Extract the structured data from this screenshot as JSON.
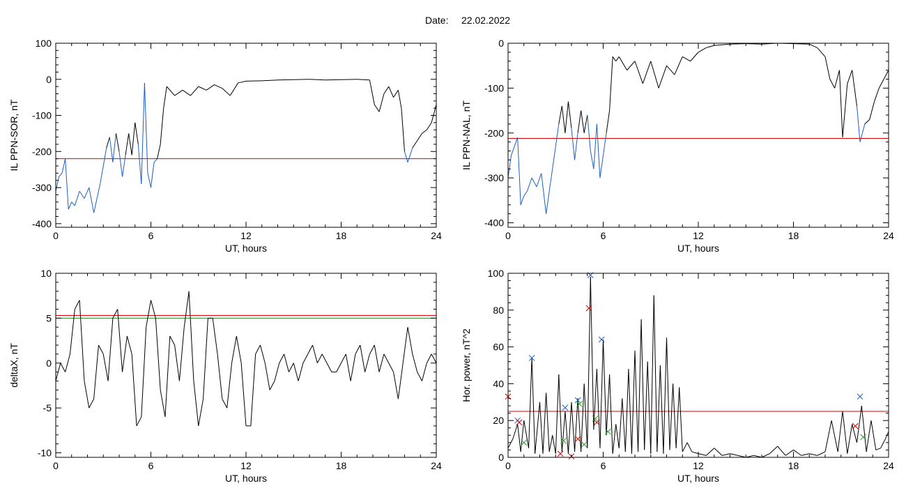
{
  "header": {
    "date_label": "Date:",
    "date_value": "22.02.2022"
  },
  "colors": {
    "trace": "#000000",
    "highlight": "#1c5ec4",
    "threshold_red": "#e00000",
    "threshold_green": "#2a8a2a",
    "marker_blue": "#1c5ec4",
    "marker_red": "#e00000",
    "marker_green": "#2aa02a"
  },
  "chart_data": [
    {
      "type": "line",
      "title": "",
      "xlabel": "UT, hours",
      "ylabel": "IL PPN-SOR, nT",
      "xlim": [
        0,
        24
      ],
      "ylim": [
        -410,
        100
      ],
      "xticks": [
        0,
        6,
        12,
        18,
        24
      ],
      "yticks": [
        -400,
        -300,
        -200,
        -100,
        0,
        100
      ],
      "grid": false,
      "threshold": -220,
      "highlight_color": "#1c5ec4",
      "x": [
        0,
        0.2,
        0.4,
        0.6,
        0.8,
        1.0,
        1.2,
        1.5,
        1.8,
        2.1,
        2.4,
        2.6,
        2.8,
        3.0,
        3.2,
        3.4,
        3.6,
        3.8,
        4.0,
        4.2,
        4.4,
        4.6,
        4.8,
        5.0,
        5.2,
        5.4,
        5.6,
        5.8,
        6.0,
        6.2,
        6.4,
        6.6,
        6.8,
        7.0,
        7.5,
        8.0,
        8.5,
        9.0,
        9.5,
        10.0,
        10.5,
        11.0,
        11.5,
        12.0,
        13.0,
        14.0,
        15.0,
        16.0,
        17.0,
        18.0,
        19.0,
        19.8,
        20.1,
        20.4,
        20.7,
        21.0,
        21.3,
        21.6,
        21.8,
        22.0,
        22.2,
        22.5,
        22.8,
        23.1,
        23.4,
        23.7,
        24.0
      ],
      "values": [
        -310,
        -270,
        -260,
        -220,
        -360,
        -340,
        -350,
        -310,
        -330,
        -300,
        -370,
        -330,
        -290,
        -240,
        -190,
        -160,
        -230,
        -150,
        -200,
        -270,
        -210,
        -150,
        -210,
        -120,
        -180,
        -290,
        -10,
        -260,
        -300,
        -230,
        -220,
        -180,
        -80,
        -20,
        -45,
        -30,
        -45,
        -20,
        -30,
        -15,
        -25,
        -45,
        -10,
        -5,
        -4,
        -2,
        -1,
        0,
        -2,
        -1,
        0,
        -2,
        -70,
        -90,
        -40,
        -20,
        -50,
        -30,
        -80,
        -200,
        -230,
        -190,
        -170,
        -150,
        -140,
        -120,
        -70
      ]
    },
    {
      "type": "line",
      "title": "",
      "xlabel": "UT, hours",
      "ylabel": "IL PPN-NAL, nT",
      "xlim": [
        0,
        24
      ],
      "ylim": [
        -410,
        0
      ],
      "xticks": [
        0,
        6,
        12,
        18,
        24
      ],
      "yticks": [
        -400,
        -300,
        -200,
        -100,
        0
      ],
      "grid": false,
      "threshold": -212,
      "highlight_color": "#1c5ec4",
      "x": [
        0,
        0.2,
        0.4,
        0.6,
        0.8,
        1.0,
        1.2,
        1.5,
        1.8,
        2.1,
        2.4,
        2.6,
        2.8,
        3.0,
        3.2,
        3.4,
        3.6,
        3.8,
        4.0,
        4.2,
        4.4,
        4.6,
        4.8,
        5.0,
        5.2,
        5.4,
        5.6,
        5.8,
        6.0,
        6.2,
        6.4,
        6.6,
        6.8,
        7.0,
        7.5,
        8.0,
        8.5,
        9.0,
        9.5,
        10.0,
        10.5,
        11.0,
        11.5,
        12.0,
        12.5,
        13.0,
        14.0,
        15.0,
        16.0,
        17.0,
        18.0,
        19.0,
        19.5,
        20.0,
        20.3,
        20.6,
        20.9,
        21.1,
        21.4,
        21.7,
        22.0,
        22.2,
        22.5,
        22.8,
        23.1,
        23.4,
        23.7,
        24.0
      ],
      "values": [
        -300,
        -250,
        -230,
        -210,
        -360,
        -340,
        -330,
        -300,
        -320,
        -290,
        -380,
        -330,
        -280,
        -230,
        -180,
        -140,
        -200,
        -130,
        -190,
        -260,
        -200,
        -150,
        -200,
        -160,
        -240,
        -280,
        -180,
        -300,
        -250,
        -200,
        -150,
        -30,
        -40,
        -30,
        -60,
        -40,
        -90,
        -40,
        -100,
        -50,
        -70,
        -30,
        -40,
        -20,
        -10,
        -5,
        -2,
        -1,
        -2,
        0,
        -1,
        -2,
        -10,
        -30,
        -80,
        -100,
        -60,
        -210,
        -90,
        -60,
        -140,
        -220,
        -180,
        -170,
        -130,
        -100,
        -80,
        -60
      ]
    },
    {
      "type": "line",
      "title": "",
      "xlabel": "UT, hours",
      "ylabel": "deltaX, nT",
      "xlim": [
        0,
        24
      ],
      "ylim": [
        -10.5,
        10
      ],
      "xticks": [
        0,
        6,
        12,
        18,
        24
      ],
      "yticks": [
        -10,
        -5,
        0,
        5,
        10
      ],
      "grid": false,
      "threshold_red": 5.3,
      "threshold_green": 5.0,
      "x": [
        0,
        0.3,
        0.6,
        0.9,
        1.2,
        1.5,
        1.8,
        2.1,
        2.4,
        2.7,
        3.0,
        3.3,
        3.6,
        3.9,
        4.2,
        4.5,
        4.8,
        5.1,
        5.4,
        5.7,
        6.0,
        6.3,
        6.6,
        6.9,
        7.2,
        7.5,
        7.8,
        8.1,
        8.4,
        8.7,
        9.0,
        9.3,
        9.6,
        9.9,
        10.2,
        10.5,
        10.8,
        11.1,
        11.4,
        11.7,
        12.0,
        12.3,
        12.6,
        12.9,
        13.2,
        13.5,
        13.8,
        14.1,
        14.4,
        14.7,
        15.0,
        15.3,
        15.6,
        15.9,
        16.2,
        16.5,
        16.8,
        17.1,
        17.4,
        17.7,
        18.0,
        18.3,
        18.6,
        18.9,
        19.2,
        19.5,
        19.8,
        20.1,
        20.4,
        20.7,
        21.0,
        21.3,
        21.6,
        21.9,
        22.2,
        22.5,
        22.8,
        23.1,
        23.4,
        23.7,
        24.0
      ],
      "values": [
        -2,
        0,
        -1,
        1,
        6,
        7,
        -2,
        -5,
        -4,
        2,
        1,
        -2,
        5,
        6,
        -1,
        3,
        1,
        -7,
        -6,
        4,
        7,
        5,
        -3,
        -6,
        3,
        2,
        -2,
        4,
        8,
        -2,
        -7,
        -4,
        5,
        5,
        1,
        -4,
        -5,
        0,
        3,
        0,
        -7,
        -7,
        1,
        2,
        0,
        -3,
        -2,
        0,
        1,
        -1,
        0,
        -2,
        0,
        1,
        2,
        0,
        1,
        0,
        -1,
        -1,
        0,
        1,
        -2,
        1,
        2,
        -1,
        1,
        2,
        -1,
        1,
        0,
        -1,
        -4,
        0,
        4,
        1,
        -1,
        -2,
        0,
        1,
        0
      ]
    },
    {
      "type": "line",
      "title": "",
      "xlabel": "UT, hours",
      "ylabel": "Hor. power, nT^2",
      "xlim": [
        0,
        24
      ],
      "ylim": [
        0,
        100
      ],
      "xticks": [
        0,
        6,
        12,
        18,
        24
      ],
      "yticks": [
        0,
        20,
        40,
        60,
        80,
        100
      ],
      "grid": false,
      "threshold": 25,
      "x": [
        0,
        0.3,
        0.6,
        0.8,
        1.0,
        1.3,
        1.5,
        1.7,
        2.0,
        2.2,
        2.4,
        2.6,
        2.8,
        3.0,
        3.2,
        3.4,
        3.6,
        3.8,
        4.0,
        4.2,
        4.4,
        4.6,
        4.8,
        5.0,
        5.2,
        5.4,
        5.6,
        5.8,
        6.0,
        6.2,
        6.4,
        6.6,
        6.8,
        7.0,
        7.2,
        7.4,
        7.6,
        7.8,
        8.0,
        8.2,
        8.4,
        8.6,
        8.8,
        9.0,
        9.2,
        9.4,
        9.6,
        9.8,
        10.0,
        10.2,
        10.4,
        10.6,
        10.8,
        11.0,
        11.3,
        11.6,
        12.0,
        12.5,
        13.0,
        13.5,
        14.0,
        14.5,
        15.0,
        15.5,
        16.0,
        16.5,
        17.0,
        17.5,
        18.0,
        18.5,
        19.0,
        19.5,
        20.0,
        20.4,
        20.8,
        21.1,
        21.4,
        21.7,
        22.0,
        22.3,
        22.6,
        22.9,
        23.2,
        23.5,
        23.8,
        24.0
      ],
      "values": [
        5,
        10,
        18,
        3,
        20,
        5,
        54,
        2,
        30,
        2,
        35,
        3,
        12,
        2,
        45,
        3,
        25,
        2,
        30,
        3,
        32,
        3,
        40,
        5,
        98,
        15,
        48,
        5,
        64,
        12,
        45,
        2,
        18,
        5,
        32,
        3,
        48,
        2,
        58,
        3,
        75,
        4,
        52,
        2,
        88,
        3,
        50,
        2,
        65,
        4,
        40,
        5,
        38,
        3,
        8,
        3,
        2,
        1,
        5,
        1,
        2,
        1,
        0,
        1,
        0,
        2,
        6,
        1,
        4,
        1,
        2,
        1,
        3,
        20,
        3,
        25,
        2,
        18,
        8,
        28,
        3,
        20,
        4,
        5,
        10,
        14
      ],
      "markers": {
        "blue": [
          [
            0.6,
            20
          ],
          [
            1.5,
            54
          ],
          [
            3.6,
            27
          ],
          [
            4.4,
            31
          ],
          [
            5.2,
            99
          ],
          [
            5.9,
            64
          ],
          [
            22.2,
            33
          ]
        ],
        "red": [
          [
            0,
            33
          ],
          [
            0.7,
            19
          ],
          [
            3.3,
            2
          ],
          [
            4.0,
            0.5
          ],
          [
            4.4,
            10
          ],
          [
            5.1,
            81
          ],
          [
            5.6,
            19
          ],
          [
            21.9,
            17
          ]
        ],
        "green": [
          [
            1.0,
            8
          ],
          [
            3.5,
            9
          ],
          [
            4.5,
            29
          ],
          [
            4.8,
            7
          ],
          [
            5.5,
            21
          ],
          [
            6.3,
            14
          ],
          [
            22.4,
            11
          ]
        ]
      }
    }
  ]
}
